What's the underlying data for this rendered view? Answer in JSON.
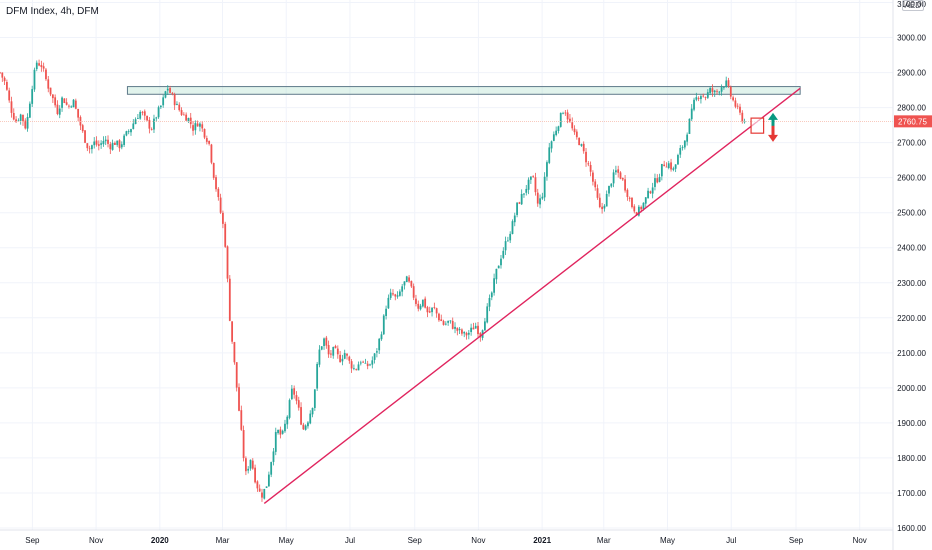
{
  "title": "DFM Index, 4h, DFM",
  "currency": "AED",
  "colors": {
    "up": "#26a69a",
    "down": "#ef5350",
    "trendline": "#e0245e",
    "zone_fill": "rgba(170,220,200,0.35)",
    "zone_border": "#5f7a8a",
    "up_arrow": "#089981",
    "down_arrow": "#e53935",
    "box": "#e53935",
    "price_line": "#ef5350",
    "grid": "#f0f3fa",
    "axis_border": "#e0e3eb"
  },
  "chart_data": {
    "type": "candlestick",
    "y_axis": {
      "ticks": [
        "3100.00",
        "3000.00",
        "2900.00",
        "2800.00",
        "2700.00",
        "2600.00",
        "2500.00",
        "2400.00",
        "2300.00",
        "2200.00",
        "2100.00",
        "2000.00",
        "1900.00",
        "1800.00",
        "1700.00",
        "1600.00"
      ],
      "ylim": [
        1550,
        3100
      ]
    },
    "x_axis": {
      "labels": [
        {
          "text": "Sep",
          "date": "2019-09-01",
          "bold": false
        },
        {
          "text": "Nov",
          "date": "2019-11-01",
          "bold": false
        },
        {
          "text": "2020",
          "date": "2020-01-01",
          "bold": true
        },
        {
          "text": "Mar",
          "date": "2020-03-01",
          "bold": false
        },
        {
          "text": "May",
          "date": "2020-05-01",
          "bold": false
        },
        {
          "text": "Jul",
          "date": "2020-07-01",
          "bold": false
        },
        {
          "text": "Sep",
          "date": "2020-09-01",
          "bold": false
        },
        {
          "text": "Nov",
          "date": "2020-11-01",
          "bold": false
        },
        {
          "text": "2021",
          "date": "2021-01-01",
          "bold": true
        },
        {
          "text": "Mar",
          "date": "2021-03-01",
          "bold": false
        },
        {
          "text": "May",
          "date": "2021-05-01",
          "bold": false
        },
        {
          "text": "Jul",
          "date": "2021-07-01",
          "bold": false
        },
        {
          "text": "Sep",
          "date": "2021-09-01",
          "bold": false
        },
        {
          "text": "Nov",
          "date": "2021-11-01",
          "bold": false
        }
      ]
    },
    "last_price": 2760.75,
    "last_price_label": "2760.75",
    "path": [
      [
        "2019-08-01",
        2900
      ],
      [
        "2019-08-06",
        2870
      ],
      [
        "2019-08-11",
        2800
      ],
      [
        "2019-08-16",
        2760
      ],
      [
        "2019-08-21",
        2780
      ],
      [
        "2019-08-26",
        2740
      ],
      [
        "2019-08-31",
        2850
      ],
      [
        "2019-09-05",
        2930
      ],
      [
        "2019-09-10",
        2920
      ],
      [
        "2019-09-15",
        2870
      ],
      [
        "2019-09-20",
        2830
      ],
      [
        "2019-09-25",
        2790
      ],
      [
        "2019-09-30",
        2830
      ],
      [
        "2019-10-05",
        2800
      ],
      [
        "2019-10-10",
        2820
      ],
      [
        "2019-10-15",
        2770
      ],
      [
        "2019-10-20",
        2720
      ],
      [
        "2019-10-25",
        2680
      ],
      [
        "2019-10-30",
        2700
      ],
      [
        "2019-11-04",
        2690
      ],
      [
        "2019-11-09",
        2710
      ],
      [
        "2019-11-14",
        2690
      ],
      [
        "2019-11-19",
        2700
      ],
      [
        "2019-11-24",
        2690
      ],
      [
        "2019-11-29",
        2720
      ],
      [
        "2019-12-04",
        2740
      ],
      [
        "2019-12-09",
        2770
      ],
      [
        "2019-12-14",
        2790
      ],
      [
        "2019-12-19",
        2760
      ],
      [
        "2019-12-24",
        2740
      ],
      [
        "2019-12-29",
        2780
      ],
      [
        "2020-01-03",
        2810
      ],
      [
        "2020-01-08",
        2860
      ],
      [
        "2020-01-13",
        2830
      ],
      [
        "2020-01-18",
        2800
      ],
      [
        "2020-01-23",
        2780
      ],
      [
        "2020-01-28",
        2770
      ],
      [
        "2020-02-02",
        2740
      ],
      [
        "2020-02-07",
        2760
      ],
      [
        "2020-02-12",
        2730
      ],
      [
        "2020-02-17",
        2700
      ],
      [
        "2020-02-22",
        2600
      ],
      [
        "2020-02-27",
        2520
      ],
      [
        "2020-03-03",
        2440
      ],
      [
        "2020-03-08",
        2200
      ],
      [
        "2020-03-13",
        2050
      ],
      [
        "2020-03-18",
        1900
      ],
      [
        "2020-03-23",
        1750
      ],
      [
        "2020-03-28",
        1800
      ],
      [
        "2020-04-02",
        1730
      ],
      [
        "2020-04-07",
        1690
      ],
      [
        "2020-04-12",
        1720
      ],
      [
        "2020-04-17",
        1800
      ],
      [
        "2020-04-22",
        1880
      ],
      [
        "2020-04-27",
        1860
      ],
      [
        "2020-05-02",
        1920
      ],
      [
        "2020-05-07",
        2000
      ],
      [
        "2020-05-12",
        1950
      ],
      [
        "2020-05-17",
        1880
      ],
      [
        "2020-05-22",
        1910
      ],
      [
        "2020-05-27",
        1960
      ],
      [
        "2020-06-01",
        2100
      ],
      [
        "2020-06-06",
        2140
      ],
      [
        "2020-06-11",
        2090
      ],
      [
        "2020-06-16",
        2110
      ],
      [
        "2020-06-21",
        2080
      ],
      [
        "2020-06-26",
        2100
      ],
      [
        "2020-07-01",
        2070
      ],
      [
        "2020-07-06",
        2050
      ],
      [
        "2020-07-11",
        2080
      ],
      [
        "2020-07-16",
        2060
      ],
      [
        "2020-07-21",
        2070
      ],
      [
        "2020-07-26",
        2100
      ],
      [
        "2020-07-31",
        2160
      ],
      [
        "2020-08-05",
        2240
      ],
      [
        "2020-08-10",
        2270
      ],
      [
        "2020-08-15",
        2250
      ],
      [
        "2020-08-20",
        2290
      ],
      [
        "2020-08-25",
        2310
      ],
      [
        "2020-08-30",
        2270
      ],
      [
        "2020-09-04",
        2230
      ],
      [
        "2020-09-09",
        2250
      ],
      [
        "2020-09-14",
        2210
      ],
      [
        "2020-09-19",
        2230
      ],
      [
        "2020-09-24",
        2200
      ],
      [
        "2020-09-29",
        2180
      ],
      [
        "2020-10-04",
        2190
      ],
      [
        "2020-10-09",
        2170
      ],
      [
        "2020-10-14",
        2160
      ],
      [
        "2020-10-19",
        2150
      ],
      [
        "2020-10-24",
        2160
      ],
      [
        "2020-10-29",
        2180
      ],
      [
        "2020-11-03",
        2150
      ],
      [
        "2020-11-08",
        2210
      ],
      [
        "2020-11-13",
        2260
      ],
      [
        "2020-11-18",
        2330
      ],
      [
        "2020-11-23",
        2380
      ],
      [
        "2020-11-28",
        2420
      ],
      [
        "2020-12-03",
        2460
      ],
      [
        "2020-12-08",
        2520
      ],
      [
        "2020-12-13",
        2550
      ],
      [
        "2020-12-18",
        2580
      ],
      [
        "2020-12-23",
        2600
      ],
      [
        "2020-12-28",
        2520
      ],
      [
        "2021-01-02",
        2560
      ],
      [
        "2021-01-07",
        2680
      ],
      [
        "2021-01-12",
        2720
      ],
      [
        "2021-01-17",
        2760
      ],
      [
        "2021-01-22",
        2800
      ],
      [
        "2021-01-27",
        2760
      ],
      [
        "2021-02-01",
        2720
      ],
      [
        "2021-02-06",
        2700
      ],
      [
        "2021-02-11",
        2660
      ],
      [
        "2021-02-16",
        2620
      ],
      [
        "2021-02-21",
        2560
      ],
      [
        "2021-02-26",
        2500
      ],
      [
        "2021-03-03",
        2540
      ],
      [
        "2021-03-08",
        2590
      ],
      [
        "2021-03-13",
        2620
      ],
      [
        "2021-03-18",
        2600
      ],
      [
        "2021-03-23",
        2560
      ],
      [
        "2021-03-28",
        2520
      ],
      [
        "2021-04-02",
        2500
      ],
      [
        "2021-04-07",
        2520
      ],
      [
        "2021-04-12",
        2550
      ],
      [
        "2021-04-17",
        2580
      ],
      [
        "2021-04-22",
        2600
      ],
      [
        "2021-04-27",
        2640
      ],
      [
        "2021-05-02",
        2640
      ],
      [
        "2021-05-07",
        2620
      ],
      [
        "2021-05-12",
        2670
      ],
      [
        "2021-05-17",
        2700
      ],
      [
        "2021-05-22",
        2760
      ],
      [
        "2021-05-27",
        2820
      ],
      [
        "2021-06-01",
        2840
      ],
      [
        "2021-06-06",
        2830
      ],
      [
        "2021-06-11",
        2850
      ],
      [
        "2021-06-16",
        2840
      ],
      [
        "2021-06-21",
        2860
      ],
      [
        "2021-06-26",
        2870
      ],
      [
        "2021-07-01",
        2830
      ],
      [
        "2021-07-06",
        2800
      ],
      [
        "2021-07-11",
        2770
      ],
      [
        "2021-07-14",
        2760
      ]
    ],
    "annotations": {
      "resistance_zone": {
        "date_start": "2019-12-01",
        "date_end": "2021-09-05",
        "low": 2838,
        "high": 2860
      },
      "trendline": {
        "date_start": "2020-04-10",
        "value_start": 1670,
        "date_end": "2021-09-05",
        "value_end": 2855
      },
      "box": {
        "date_start": "2021-07-20",
        "date_end": "2021-08-01",
        "low": 2727,
        "high": 2770
      },
      "arrow_up": {
        "date": "2021-08-10",
        "from": 2745,
        "to": 2782
      },
      "arrow_down": {
        "date": "2021-08-10",
        "from": 2748,
        "to": 2705
      }
    }
  }
}
